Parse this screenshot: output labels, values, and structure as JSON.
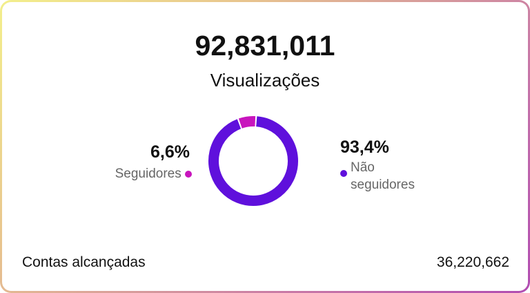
{
  "total": "92,831,011",
  "total_label": "Visualizações",
  "chart_data": {
    "type": "pie",
    "categories": [
      "Seguidores",
      "Não seguidores"
    ],
    "values": [
      6.6,
      93.4
    ],
    "value_labels": [
      "6,6%",
      "93,4%"
    ],
    "colors": [
      "#c815bd",
      "#5f10dc"
    ]
  },
  "footer": {
    "label": "Contas alcançadas",
    "value": "36,220,662"
  }
}
